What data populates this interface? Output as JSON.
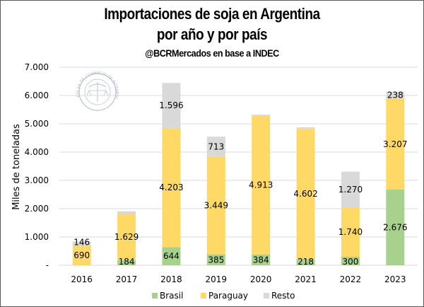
{
  "colors": {
    "Brasil": "#A9D18E",
    "Paraguay": "#FFD966",
    "Resto": "#D9D9D9",
    "grid": "#D9D9D9",
    "axis": "#D9D9D9",
    "text": "#000000"
  },
  "logo": {
    "text": "BOLSA DE COMERCIO DE ROSARIO",
    "icon": "caduceus-scales-seal-icon"
  },
  "chart_data": {
    "type": "bar",
    "stacked": true,
    "title": "Importaciones de soja en Argentina",
    "title_line2": "por año y por país",
    "subtitle": "@BCRMercados en base a INDEC",
    "xlabel": "",
    "ylabel": "Miles de toneladas",
    "ylim": [
      0,
      7000
    ],
    "yticks": [
      0,
      1000,
      2000,
      3000,
      4000,
      5000,
      6000,
      7000
    ],
    "ytick_labels": [
      "-",
      "1.000",
      "2.000",
      "3.000",
      "4.000",
      "5.000",
      "6.000",
      "7.000"
    ],
    "grid": true,
    "legend_position": "bottom",
    "categories": [
      "2016",
      "2017",
      "2018",
      "2019",
      "2020",
      "2021",
      "2022",
      "2023"
    ],
    "series": [
      {
        "name": "Brasil",
        "values": [
          0,
          184,
          644,
          385,
          384,
          218,
          300,
          2676
        ],
        "labels": [
          "",
          "184",
          "644",
          "385",
          "384",
          "218",
          "300",
          "2.676"
        ]
      },
      {
        "name": "Paraguay",
        "values": [
          690,
          1629,
          4203,
          3449,
          4913,
          4602,
          1740,
          3207
        ],
        "labels": [
          "690",
          "1.629",
          "4.203",
          "3.449",
          "4.913",
          "4.602",
          "1.740",
          "3.207"
        ]
      },
      {
        "name": "Resto",
        "values": [
          146,
          95,
          1596,
          713,
          25,
          55,
          1270,
          238
        ],
        "labels": [
          "146",
          "",
          "1.596",
          "713",
          "",
          "",
          "1.270",
          "238"
        ]
      }
    ]
  }
}
